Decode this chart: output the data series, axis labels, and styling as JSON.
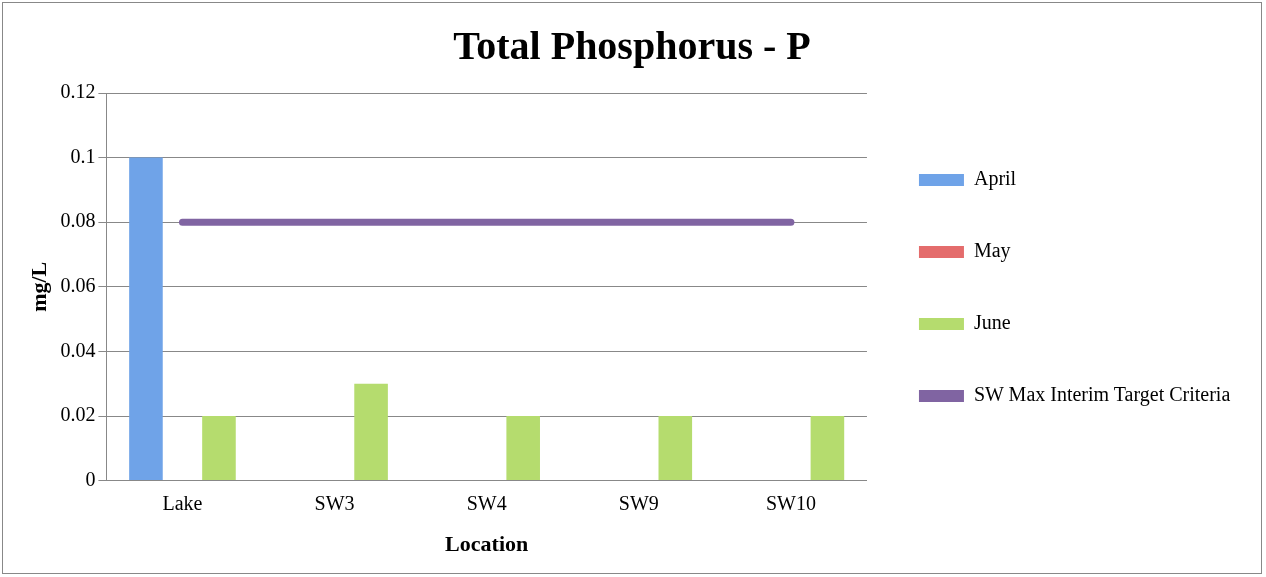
{
  "chart_data": {
    "type": "bar",
    "title": "Total Phosphorus - P",
    "xlabel": "Location",
    "ylabel": "mg/L",
    "categories": [
      "Lake",
      "SW3",
      "SW4",
      "SW9",
      "SW10"
    ],
    "series": [
      {
        "name": "April",
        "color": "#6fa3e8",
        "values": [
          0.1,
          null,
          null,
          null,
          null
        ]
      },
      {
        "name": "May",
        "color": "#e46c6c",
        "values": [
          null,
          null,
          null,
          null,
          null
        ]
      },
      {
        "name": "June",
        "color": "#b5dc6e",
        "values": [
          0.02,
          0.03,
          0.02,
          0.02,
          0.02
        ]
      },
      {
        "name": "SW Max Interim Target Criteria",
        "type": "line",
        "color": "#8064a2",
        "values": [
          0.08,
          0.08,
          0.08,
          0.08,
          0.08
        ]
      }
    ],
    "ylim": [
      0,
      0.12
    ],
    "yticks": [
      0,
      0.02,
      0.04,
      0.06,
      0.08,
      0.1,
      0.12
    ],
    "grid": "y",
    "legend": "right",
    "marker": "none",
    "line_style": "solid"
  }
}
